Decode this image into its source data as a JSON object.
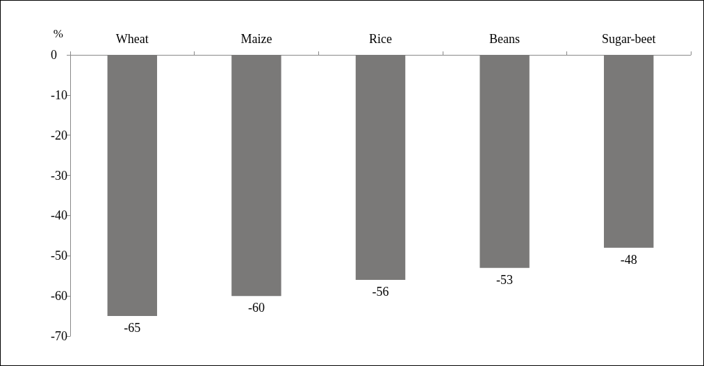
{
  "chart_data": {
    "type": "bar",
    "ylabel": "%",
    "categories": [
      "Wheat",
      "Maize",
      "Rice",
      "Beans",
      "Sugar-beet"
    ],
    "values": [
      -65,
      -60,
      -56,
      -53,
      -48
    ],
    "color": "#7a7978",
    "ylim": [
      -70,
      0
    ],
    "yticks": [
      -70,
      -60,
      -50,
      -40,
      -30,
      -20,
      -10,
      0
    ],
    "data_labels": true
  }
}
